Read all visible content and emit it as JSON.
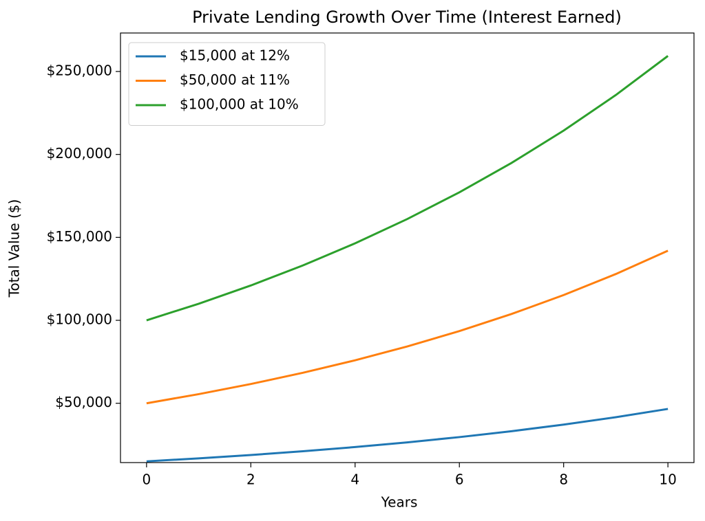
{
  "chart_data": {
    "type": "line",
    "title": "Private Lending Growth Over Time (Interest Earned)",
    "x_label": "Years",
    "y_label": "Total Value ($)",
    "x": [
      0,
      1,
      2,
      3,
      4,
      5,
      6,
      7,
      8,
      9,
      10
    ],
    "series": [
      {
        "name": "$15,000 at 12%",
        "color": "#1f77b4",
        "values": [
          15000,
          16800,
          18816,
          21074,
          23603,
          26435,
          29607,
          33160,
          37140,
          41596,
          46588
        ]
      },
      {
        "name": "$50,000 at 11%",
        "color": "#ff7f0e",
        "values": [
          50000,
          55500,
          61605,
          68382,
          75903,
          84253,
          93520,
          103807,
          115226,
          127901,
          141971
        ]
      },
      {
        "name": "$100,000 at 10%",
        "color": "#2ca02c",
        "values": [
          100000,
          110000,
          121000,
          133100,
          146410,
          161051,
          177156,
          194872,
          214359,
          235795,
          259374
        ]
      }
    ],
    "xlim": [
      -0.5,
      10.5
    ],
    "xticks": [
      0,
      2,
      4,
      6,
      8,
      10
    ],
    "ylim": [
      14250,
      273200
    ],
    "yticks": [
      {
        "value": 50000,
        "label": "$50,000"
      },
      {
        "value": 100000,
        "label": "$100,000"
      },
      {
        "value": 150000,
        "label": "$150,000"
      },
      {
        "value": 200000,
        "label": "$200,000"
      },
      {
        "value": 250000,
        "label": "$250,000"
      }
    ],
    "legend": "upper left",
    "grid": false
  }
}
